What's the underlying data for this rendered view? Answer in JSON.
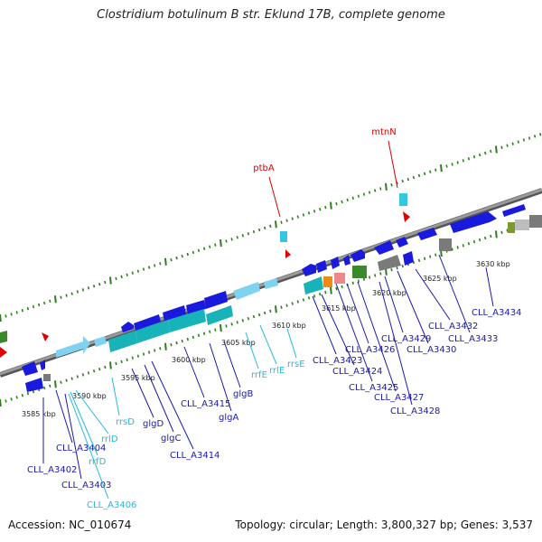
{
  "title": "Clostridium botulinum B str. Eklund 17B, complete genome",
  "footer": {
    "accession": "Accession: NC_010674",
    "summary": "Topology: circular; Length: 3,800,327 bp; Genes: 3,537"
  },
  "colors": {
    "background": "#ffffff",
    "backbone": "#8a8a8a",
    "tick": "#2e7d1e",
    "cds_blue": "#1a1adf",
    "rrna_cyan": "#33c6dd",
    "rrna_light": "#7fd2f0",
    "trna_teal": "#17b3b8",
    "gray_feature": "#7a7a7a",
    "green_feature": "#3a8a2a",
    "orange_feature": "#ee8a1a",
    "pink_feature": "#ee8888",
    "red_marker": "#dd0000",
    "label_blue": "#1a1aaa",
    "label_cyan": "#22bbdd"
  },
  "scale_labels": [
    "3585 kbp",
    "3590 kbp",
    "3595 kbp",
    "3600 kbp",
    "3605 kbp",
    "3610 kbp",
    "3615 kbp",
    "3620 kbp",
    "3625 kbp",
    "3630 kbp"
  ],
  "markers": [
    {
      "label": "ptbA"
    },
    {
      "label": "mtnN"
    }
  ],
  "gene_labels": [
    {
      "text": "CLL_A3402",
      "type": "cds"
    },
    {
      "text": "CLL_A3404",
      "type": "cds"
    },
    {
      "text": "CLL_A3403",
      "type": "cds"
    },
    {
      "text": "CLL_A3406",
      "type": "rna"
    },
    {
      "text": "rrfD",
      "type": "rna"
    },
    {
      "text": "rrlD",
      "type": "rna"
    },
    {
      "text": "rrsD",
      "type": "rna"
    },
    {
      "text": "glgD",
      "type": "cds"
    },
    {
      "text": "glgC",
      "type": "cds"
    },
    {
      "text": "CLL_A3414",
      "type": "cds"
    },
    {
      "text": "CLL_A3415",
      "type": "cds"
    },
    {
      "text": "glgA",
      "type": "cds"
    },
    {
      "text": "glgB",
      "type": "cds"
    },
    {
      "text": "rrfE",
      "type": "rna"
    },
    {
      "text": "rrlE",
      "type": "rna"
    },
    {
      "text": "rrsE",
      "type": "rna"
    },
    {
      "text": "CLL_A3423",
      "type": "cds"
    },
    {
      "text": "CLL_A3424",
      "type": "cds"
    },
    {
      "text": "CLL_A3425",
      "type": "cds"
    },
    {
      "text": "CLL_A3426",
      "type": "cds"
    },
    {
      "text": "CLL_A3427",
      "type": "cds"
    },
    {
      "text": "CLL_A3428",
      "type": "cds"
    },
    {
      "text": "CLL_A3429",
      "type": "cds"
    },
    {
      "text": "CLL_A3430",
      "type": "cds"
    },
    {
      "text": "CLL_A3432",
      "type": "cds"
    },
    {
      "text": "CLL_A3433",
      "type": "cds"
    },
    {
      "text": "CLL_A3434",
      "type": "cds"
    }
  ]
}
